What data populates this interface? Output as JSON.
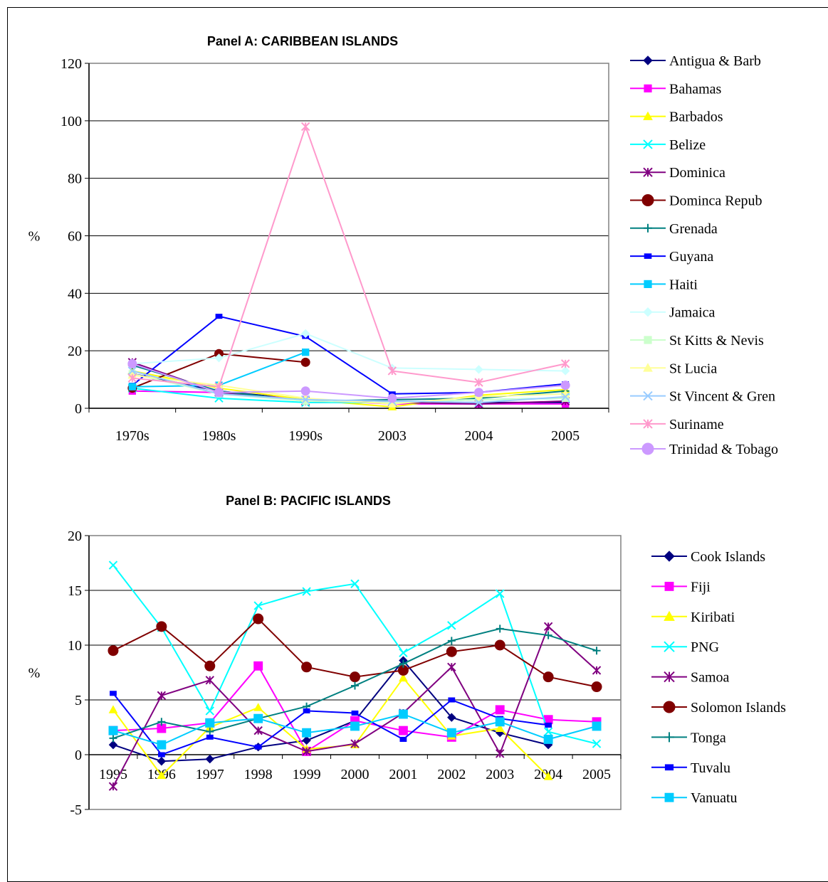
{
  "chart_data": [
    {
      "type": "line",
      "title": "Panel A: CARIBBEAN ISLANDS",
      "ylabel": "%",
      "xlabel": "",
      "ylim": [
        0,
        120
      ],
      "yticks": [
        0,
        20,
        40,
        60,
        80,
        100,
        120
      ],
      "grid": true,
      "legend": "right",
      "categories": [
        "1970s",
        "1980s",
        "1990s",
        "2003",
        "2004",
        "2005"
      ],
      "series": [
        {
          "name": "Antigua & Barb",
          "color": "#000080",
          "marker": "diamond",
          "values": [
            12,
            6,
            3,
            2,
            2,
            2
          ]
        },
        {
          "name": "Bahamas",
          "color": "#ff00ff",
          "marker": "square",
          "values": [
            6,
            5.5,
            3,
            1.5,
            1.5,
            1.5
          ]
        },
        {
          "name": "Barbados",
          "color": "#ffff00",
          "marker": "triangle",
          "values": [
            13,
            7,
            3,
            0.5,
            4.5,
            6.5
          ]
        },
        {
          "name": "Belize",
          "color": "#00ffff",
          "marker": "x",
          "values": [
            7,
            3.5,
            2,
            2,
            3,
            3.5
          ]
        },
        {
          "name": "Dominica",
          "color": "#800080",
          "marker": "star",
          "values": [
            16,
            5.5,
            2.5,
            2,
            1.5,
            2.5
          ]
        },
        {
          "name": "Dominca Repub",
          "color": "#800000",
          "marker": "circle",
          "values": [
            7,
            19,
            16,
            null,
            null,
            null
          ]
        },
        {
          "name": "Grenada",
          "color": "#008080",
          "marker": "plus",
          "values": [
            15,
            6,
            2.5,
            3,
            3.5,
            6
          ]
        },
        {
          "name": "Guyana",
          "color": "#0000ff",
          "marker": "dash",
          "values": [
            8,
            32,
            25,
            5,
            5.5,
            8.5
          ]
        },
        {
          "name": "Haiti",
          "color": "#00ccff",
          "marker": "square",
          "values": [
            7.5,
            8,
            19.5,
            null,
            null,
            null
          ]
        },
        {
          "name": "Jamaica",
          "color": "#ccffff",
          "marker": "diamond",
          "values": [
            15.5,
            17.5,
            26,
            14,
            13.5,
            13
          ]
        },
        {
          "name": "St Kitts & Nevis",
          "color": "#ccffcc",
          "marker": "square",
          "values": [
            12,
            5,
            2.5,
            2,
            3,
            3.5
          ]
        },
        {
          "name": "St Lucia",
          "color": "#ffff99",
          "marker": "triangle",
          "values": [
            11.5,
            8,
            3.5,
            1.5,
            4,
            5
          ]
        },
        {
          "name": "St Vincent & Gren",
          "color": "#99ccff",
          "marker": "x",
          "values": [
            13,
            5,
            3,
            2.5,
            2,
            4
          ]
        },
        {
          "name": "Suriname",
          "color": "#ff99cc",
          "marker": "star",
          "values": [
            10.5,
            7.5,
            98,
            13,
            9,
            15.5
          ]
        },
        {
          "name": "Trinidad & Tobago",
          "color": "#cc99ff",
          "marker": "circle",
          "values": [
            15.5,
            5.5,
            6,
            3.5,
            5.5,
            8
          ]
        }
      ]
    },
    {
      "type": "line",
      "title": "Panel B: PACIFIC ISLANDS",
      "ylabel": "%",
      "xlabel": "",
      "ylim": [
        -5,
        20
      ],
      "yticks": [
        -5,
        0,
        5,
        10,
        15,
        20
      ],
      "grid": true,
      "legend": "right",
      "categories": [
        "1995",
        "1996",
        "1997",
        "1998",
        "1999",
        "2000",
        "2001",
        "2002",
        "2003",
        "2004",
        "2005"
      ],
      "series": [
        {
          "name": "Cook Islands",
          "color": "#000080",
          "marker": "diamond",
          "values": [
            0.9,
            -0.6,
            -0.4,
            0.7,
            1.3,
            3.1,
            8.6,
            3.4,
            2,
            0.9,
            null
          ]
        },
        {
          "name": "Fiji",
          "color": "#ff00ff",
          "marker": "square",
          "values": [
            2.2,
            2.4,
            2.9,
            8.1,
            0.3,
            3.1,
            2.2,
            1.6,
            4.1,
            3.2,
            3
          ]
        },
        {
          "name": "Kiribati",
          "color": "#ffff00",
          "marker": "triangle",
          "values": [
            4.1,
            -1.9,
            2.5,
            4.3,
            0.5,
            0.9,
            7,
            1.7,
            2.4,
            -2,
            null
          ]
        },
        {
          "name": "PNG",
          "color": "#00ffff",
          "marker": "x",
          "values": [
            17.3,
            11.6,
            4,
            13.6,
            14.9,
            15.6,
            9.3,
            11.8,
            14.7,
            2.1,
            1
          ]
        },
        {
          "name": "Samoa",
          "color": "#800080",
          "marker": "star",
          "values": [
            -2.9,
            5.4,
            6.8,
            2.2,
            0.3,
            1,
            3.8,
            8,
            0.1,
            11.7,
            7.7
          ]
        },
        {
          "name": "Solomon Islands",
          "color": "#800000",
          "marker": "circle",
          "values": [
            9.5,
            11.7,
            8.1,
            12.4,
            8,
            7.1,
            7.7,
            9.4,
            10,
            7.1,
            6.2
          ]
        },
        {
          "name": "Tonga",
          "color": "#008080",
          "marker": "plus",
          "values": [
            1.5,
            3,
            2.1,
            3.3,
            4.4,
            6.3,
            8.3,
            10.4,
            11.5,
            10.9,
            9.5
          ]
        },
        {
          "name": "Tuvalu",
          "color": "#0000ff",
          "marker": "dash",
          "values": [
            5.6,
            0,
            1.6,
            0.7,
            4,
            3.8,
            1.4,
            5,
            3.3,
            2.7,
            null
          ]
        },
        {
          "name": "Vanuatu",
          "color": "#00ccff",
          "marker": "square",
          "values": [
            2.2,
            0.9,
            2.9,
            3.3,
            2,
            2.6,
            3.7,
            2,
            3,
            1.4,
            2.6
          ]
        }
      ]
    }
  ]
}
